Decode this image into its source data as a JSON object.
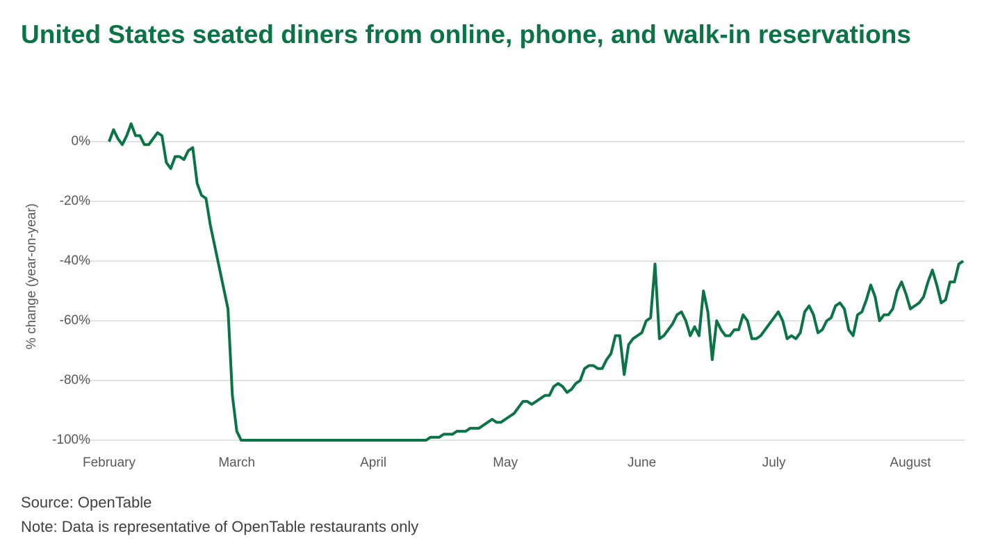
{
  "chart_data": {
    "type": "line",
    "title": "United States seated diners from online, phone, and walk-in reservations",
    "ylabel": "% change (year-on-year)",
    "source": "Source: OpenTable",
    "note": "Note: Data is representative of OpenTable restaurants only",
    "color": "#0a7446",
    "grid": true,
    "ylim": [
      -100,
      8
    ],
    "yticks": [
      {
        "value": 0,
        "label": "0%"
      },
      {
        "value": -20,
        "label": "-20%"
      },
      {
        "value": -40,
        "label": "-40%"
      },
      {
        "value": -60,
        "label": "-60%"
      },
      {
        "value": -80,
        "label": "-80%"
      },
      {
        "value": -100,
        "label": "-100%"
      }
    ],
    "categories": [
      "February",
      null,
      null,
      null,
      null,
      null,
      null,
      null,
      null,
      null,
      null,
      null,
      null,
      null,
      null,
      null,
      null,
      null,
      null,
      null,
      null,
      null,
      null,
      null,
      null,
      null,
      null,
      null,
      null,
      "March",
      null,
      null,
      null,
      null,
      null,
      null,
      null,
      null,
      null,
      null,
      null,
      null,
      null,
      null,
      null,
      null,
      null,
      null,
      null,
      null,
      null,
      null,
      null,
      null,
      null,
      null,
      null,
      null,
      null,
      null,
      "April",
      null,
      null,
      null,
      null,
      null,
      null,
      null,
      null,
      null,
      null,
      null,
      null,
      null,
      null,
      null,
      null,
      null,
      null,
      null,
      null,
      null,
      null,
      null,
      null,
      null,
      null,
      null,
      null,
      null,
      "May",
      null,
      null,
      null,
      null,
      null,
      null,
      null,
      null,
      null,
      null,
      null,
      null,
      null,
      null,
      null,
      null,
      null,
      null,
      null,
      null,
      null,
      null,
      null,
      null,
      null,
      null,
      null,
      null,
      null,
      null,
      "June",
      null,
      null,
      null,
      null,
      null,
      null,
      null,
      null,
      null,
      null,
      null,
      null,
      null,
      null,
      null,
      null,
      null,
      null,
      null,
      null,
      null,
      null,
      null,
      null,
      null,
      null,
      null,
      null,
      null,
      "July",
      null,
      null,
      null,
      null,
      null,
      null,
      null,
      null,
      null,
      null,
      null,
      null,
      null,
      null,
      null,
      null,
      null,
      null,
      null,
      null,
      null,
      null,
      null,
      null,
      null,
      null,
      null,
      null,
      null,
      null,
      "August",
      null,
      null,
      null,
      null,
      null,
      null,
      null,
      null,
      null,
      null,
      null,
      null
    ],
    "values": [
      0,
      4,
      1,
      -1,
      2,
      6,
      2,
      2,
      -1,
      -1,
      1,
      3,
      2,
      -7,
      -9,
      -5,
      -5,
      -6,
      -3,
      -2,
      -14,
      -18,
      -19,
      -28,
      -35,
      -42,
      -49,
      -56,
      -85,
      -97,
      -100,
      -100,
      -100,
      -100,
      -100,
      -100,
      -100,
      -100,
      -100,
      -100,
      -100,
      -100,
      -100,
      -100,
      -100,
      -100,
      -100,
      -100,
      -100,
      -100,
      -100,
      -100,
      -100,
      -100,
      -100,
      -100,
      -100,
      -100,
      -100,
      -100,
      -100,
      -100,
      -100,
      -100,
      -100,
      -100,
      -100,
      -100,
      -100,
      -100,
      -100,
      -100,
      -100,
      -99,
      -99,
      -99,
      -98,
      -98,
      -98,
      -97,
      -97,
      -97,
      -96,
      -96,
      -96,
      -95,
      -94,
      -93,
      -94,
      -94,
      -93,
      -92,
      -91,
      -89,
      -87,
      -87,
      -88,
      -87,
      -86,
      -85,
      -85,
      -82,
      -81,
      -82,
      -84,
      -83,
      -81,
      -80,
      -76,
      -75,
      -75,
      -76,
      -76,
      -73,
      -71,
      -65,
      -65,
      -78,
      -68,
      -66,
      -65,
      -64,
      -60,
      -59,
      -41,
      -66,
      -65,
      -63,
      -61,
      -58,
      -57,
      -60,
      -65,
      -62,
      -65,
      -50,
      -57,
      -73,
      -60,
      -63,
      -65,
      -65,
      -63,
      -63,
      -58,
      -60,
      -66,
      -66,
      -65,
      -63,
      -61,
      -59,
      -57,
      -60,
      -66,
      -65,
      -66,
      -64,
      -57,
      -55,
      -58,
      -64,
      -63,
      -60,
      -59,
      -55,
      -54,
      -56,
      -63,
      -65,
      -58,
      -57,
      -53,
      -48,
      -52,
      -60,
      -58,
      -58,
      -56,
      -50,
      -47,
      -51,
      -56,
      -55,
      -54,
      -52,
      -47,
      -43,
      -48,
      -54,
      -53,
      -47,
      -47,
      -41,
      -40
    ]
  }
}
